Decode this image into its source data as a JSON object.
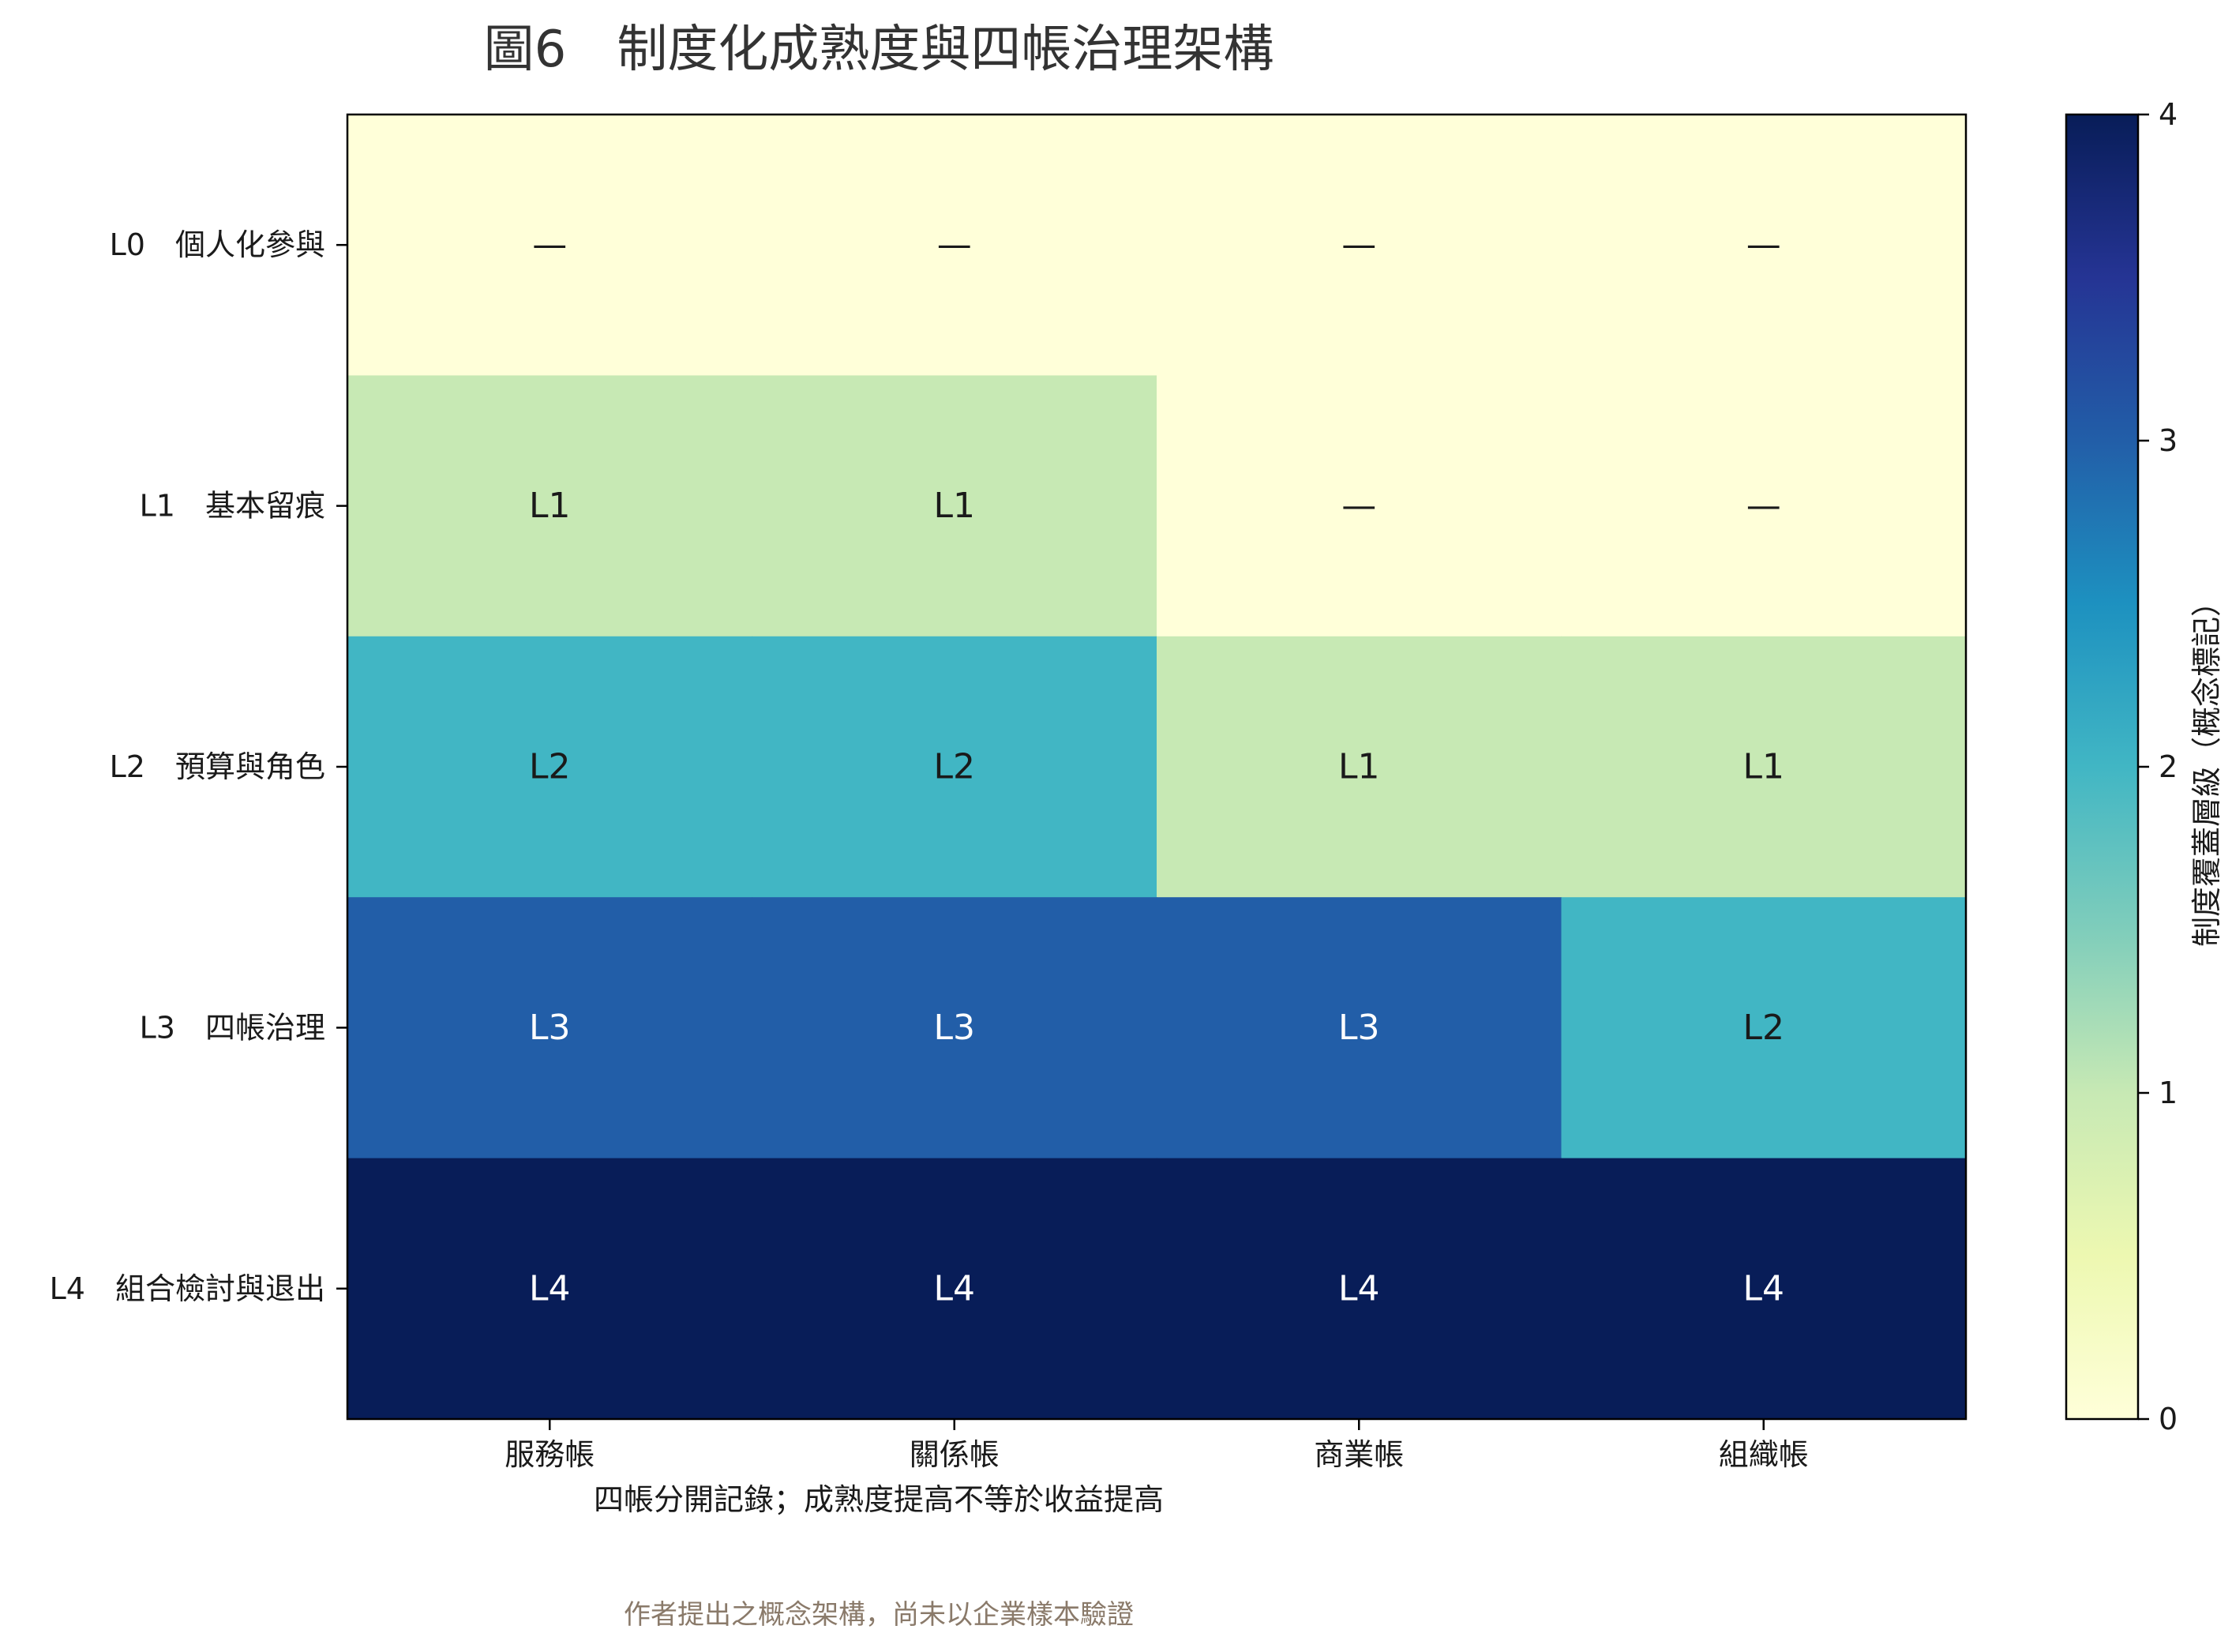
{
  "chart_data": {
    "type": "heatmap",
    "title": "圖6　制度化成熟度與四帳治理架構",
    "xlabel": "四帳分開記錄；成熟度提高不等於收益提高",
    "caption": "作者提出之概念架構，尚未以企業樣本驗證",
    "x_categories": [
      "服務帳",
      "關係帳",
      "商業帳",
      "組織帳"
    ],
    "y_categories": [
      "L0　個人化參與",
      "L1　基本留痕",
      "L2　預算與角色",
      "L3　四帳治理",
      "L4　組合檢討與退出"
    ],
    "values": [
      [
        0,
        0,
        0,
        0
      ],
      [
        1,
        1,
        0,
        0
      ],
      [
        2,
        2,
        1,
        1
      ],
      [
        3,
        3,
        3,
        2
      ],
      [
        4,
        4,
        4,
        4
      ]
    ],
    "cell_labels": [
      [
        "—",
        "—",
        "—",
        "—"
      ],
      [
        "L1",
        "L1",
        "—",
        "—"
      ],
      [
        "L2",
        "L2",
        "L1",
        "L1"
      ],
      [
        "L3",
        "L3",
        "L3",
        "L2"
      ],
      [
        "L4",
        "L4",
        "L4",
        "L4"
      ]
    ],
    "colorbar": {
      "label": "制度覆蓋層級（概念標記）",
      "range": [
        0,
        4
      ],
      "ticks": [
        "0",
        "1",
        "2",
        "3",
        "4"
      ],
      "colormap": "YlGnBu",
      "stops": [
        "#ffffd9",
        "#edf8b1",
        "#c7e9b4",
        "#7fcdbb",
        "#41b6c4",
        "#1d91c0",
        "#225ea8",
        "#253494",
        "#081d58"
      ]
    },
    "colors": {
      "level0": "#ffffd9",
      "level1": "#c7e9b4",
      "level2": "#41b6c4",
      "level3": "#225ea8",
      "level4": "#081d58"
    }
  }
}
